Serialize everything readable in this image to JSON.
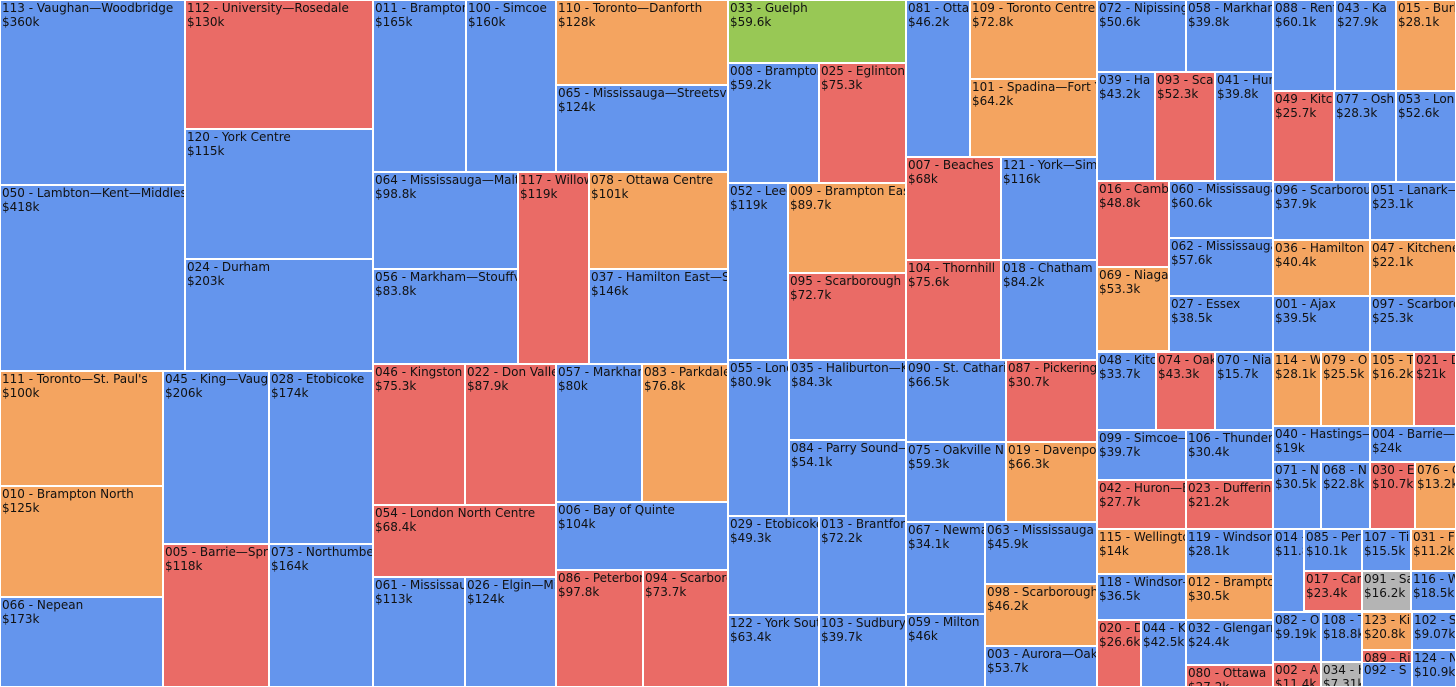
{
  "colors": {
    "Liberal": "#6495ed",
    "Conservative": "#ea6b66",
    "NDP": "#f4a460",
    "Green": "#98c855",
    "Other": "#b4b4b4"
  },
  "chart_data": {
    "type": "treemap",
    "title": "",
    "value_unit": "$",
    "items": [
      {
        "label": "113 - Vaughan—Woodbridge",
        "value_label": "$360k",
        "value": 360000,
        "party": "Liberal"
      },
      {
        "label": "050 - Lambton—Kent—Middlesex",
        "value_label": "$418k",
        "value": 418000,
        "party": "Liberal"
      },
      {
        "label": "112 - University—Rosedale",
        "value_label": "$130k",
        "value": 130000,
        "party": "Conservative"
      },
      {
        "label": "120 - York Centre",
        "value_label": "$115k",
        "value": 115000,
        "party": "Liberal"
      },
      {
        "label": "024 - Durham",
        "value_label": "$203k",
        "value": 203000,
        "party": "Liberal"
      },
      {
        "label": "111 - Toronto—St. Paul's",
        "value_label": "$100k",
        "value": 100000,
        "party": "NDP"
      },
      {
        "label": "010 - Brampton North",
        "value_label": "$125k",
        "value": 125000,
        "party": "NDP"
      },
      {
        "label": "066 - Nepean",
        "value_label": "$173k",
        "value": 173000,
        "party": "Liberal"
      },
      {
        "label": "045 - King—Vaughan",
        "value_label": "$206k",
        "value": 206000,
        "party": "Liberal"
      },
      {
        "label": "005 - Barrie—Springwater",
        "value_label": "$118k",
        "value": 118000,
        "party": "Conservative"
      },
      {
        "label": "028 - Etobicoke",
        "value_label": "$174k",
        "value": 174000,
        "party": "Liberal"
      },
      {
        "label": "073 - Northumberland",
        "value_label": "$164k",
        "value": 164000,
        "party": "Liberal"
      },
      {
        "label": "011 - Brampton",
        "value_label": "$165k",
        "value": 165000,
        "party": "Liberal"
      },
      {
        "label": "100 - Simcoe",
        "value_label": "$160k",
        "value": 160000,
        "party": "Liberal"
      },
      {
        "label": "064 - Mississauga—Malton",
        "value_label": "$98.8k",
        "value": 98800,
        "party": "Liberal"
      },
      {
        "label": "056 - Markham—Stouffville",
        "value_label": "$83.8k",
        "value": 83800,
        "party": "Liberal"
      },
      {
        "label": "117 - Willowdale",
        "value_label": "$119k",
        "value": 119000,
        "party": "Conservative"
      },
      {
        "label": "110 - Toronto—Danforth",
        "value_label": "$128k",
        "value": 128000,
        "party": "NDP"
      },
      {
        "label": "065 - Mississauga—Streetsville",
        "value_label": "$124k",
        "value": 124000,
        "party": "Liberal"
      },
      {
        "label": "078 - Ottawa Centre",
        "value_label": "$101k",
        "value": 101000,
        "party": "NDP"
      },
      {
        "label": "037 - Hamilton East—Stoney Creek",
        "value_label": "$146k",
        "value": 146000,
        "party": "Liberal"
      },
      {
        "label": "046 - Kingston",
        "value_label": "$75.3k",
        "value": 75300,
        "party": "Conservative"
      },
      {
        "label": "022 - Don Valley",
        "value_label": "$87.9k",
        "value": 87900,
        "party": "Conservative"
      },
      {
        "label": "054 - London North Centre",
        "value_label": "$68.4k",
        "value": 68400,
        "party": "Conservative"
      },
      {
        "label": "061 - Mississauga",
        "value_label": "$113k",
        "value": 113000,
        "party": "Liberal"
      },
      {
        "label": "026 - Elgin—Middlesex",
        "value_label": "$124k",
        "value": 124000,
        "party": "Liberal"
      },
      {
        "label": "057 - Markham",
        "value_label": "$80k",
        "value": 80000,
        "party": "Liberal"
      },
      {
        "label": "083 - Parkdale",
        "value_label": "$76.8k",
        "value": 76800,
        "party": "NDP"
      },
      {
        "label": "006 - Bay of Quinte",
        "value_label": "$104k",
        "value": 104000,
        "party": "Liberal"
      },
      {
        "label": "086 - Peterborough",
        "value_label": "$97.8k",
        "value": 97800,
        "party": "Conservative"
      },
      {
        "label": "094 - Scarborough",
        "value_label": "$73.7k",
        "value": 73700,
        "party": "Conservative"
      },
      {
        "label": "033 - Guelph",
        "value_label": "$59.6k",
        "value": 59600,
        "party": "Green"
      },
      {
        "label": "008 - Brampton",
        "value_label": "$59.2k",
        "value": 59200,
        "party": "Liberal"
      },
      {
        "label": "025 - Eglinton",
        "value_label": "$75.3k",
        "value": 75300,
        "party": "Conservative"
      },
      {
        "label": "052 - Leeds",
        "value_label": "$119k",
        "value": 119000,
        "party": "Liberal"
      },
      {
        "label": "009 - Brampton East",
        "value_label": "$89.7k",
        "value": 89700,
        "party": "NDP"
      },
      {
        "label": "095 - Scarborough",
        "value_label": "$72.7k",
        "value": 72700,
        "party": "Conservative"
      },
      {
        "label": "055 - London",
        "value_label": "$80.9k",
        "value": 80900,
        "party": "Liberal"
      },
      {
        "label": "035 - Haliburton—Kawartha",
        "value_label": "$84.3k",
        "value": 84300,
        "party": "Liberal"
      },
      {
        "label": "084 - Parry Sound—Muskoka",
        "value_label": "$54.1k",
        "value": 54100,
        "party": "Liberal"
      },
      {
        "label": "029 - Etobicoke",
        "value_label": "$49.3k",
        "value": 49300,
        "party": "Liberal"
      },
      {
        "label": "013 - Brantford",
        "value_label": "$72.2k",
        "value": 72200,
        "party": "Liberal"
      },
      {
        "label": "122 - York South",
        "value_label": "$63.4k",
        "value": 63400,
        "party": "Liberal"
      },
      {
        "label": "103 - Sudbury",
        "value_label": "$39.7k",
        "value": 39700,
        "party": "Liberal"
      },
      {
        "label": "081 - Ottawa",
        "value_label": "$46.2k",
        "value": 46200,
        "party": "Liberal"
      },
      {
        "label": "109 - Toronto Centre",
        "value_label": "$72.8k",
        "value": 72800,
        "party": "NDP"
      },
      {
        "label": "101 - Spadina—Fort York",
        "value_label": "$64.2k",
        "value": 64200,
        "party": "NDP"
      },
      {
        "label": "007 - Beaches",
        "value_label": "$68k",
        "value": 68000,
        "party": "Conservative"
      },
      {
        "label": "121 - York—Simcoe",
        "value_label": "$116k",
        "value": 116000,
        "party": "Liberal"
      },
      {
        "label": "104 - Thornhill",
        "value_label": "$75.6k",
        "value": 75600,
        "party": "Conservative"
      },
      {
        "label": "018 - Chatham",
        "value_label": "$84.2k",
        "value": 84200,
        "party": "Liberal"
      },
      {
        "label": "090 - St. Catharines",
        "value_label": "$66.5k",
        "value": 66500,
        "party": "Liberal"
      },
      {
        "label": "087 - Pickering",
        "value_label": "$30.7k",
        "value": 30700,
        "party": "Conservative"
      },
      {
        "label": "075 - Oakville N",
        "value_label": "$59.3k",
        "value": 59300,
        "party": "Liberal"
      },
      {
        "label": "019 - Davenport",
        "value_label": "$66.3k",
        "value": 66300,
        "party": "NDP"
      },
      {
        "label": "067 - Newmarket",
        "value_label": "$34.1k",
        "value": 34100,
        "party": "Liberal"
      },
      {
        "label": "063 - Mississauga",
        "value_label": "$45.9k",
        "value": 45900,
        "party": "Liberal"
      },
      {
        "label": "098 - Scarborough",
        "value_label": "$46.2k",
        "value": 46200,
        "party": "NDP"
      },
      {
        "label": "059 - Milton",
        "value_label": "$46k",
        "value": 46000,
        "party": "Liberal"
      },
      {
        "label": "003 - Aurora—Oak Ridges",
        "value_label": "$53.7k",
        "value": 53700,
        "party": "Liberal"
      },
      {
        "label": "072 - Nipissing",
        "value_label": "$50.6k",
        "value": 50600,
        "party": "Liberal"
      },
      {
        "label": "058 - Markham",
        "value_label": "$39.8k",
        "value": 39800,
        "party": "Liberal"
      },
      {
        "label": "039 - Ha",
        "value_label": "$43.2k",
        "value": 43200,
        "party": "Liberal"
      },
      {
        "label": "093 - Sca",
        "value_label": "$52.3k",
        "value": 52300,
        "party": "Conservative"
      },
      {
        "label": "041 - Hur",
        "value_label": "$39.8k",
        "value": 39800,
        "party": "Liberal"
      },
      {
        "label": "016 - Cambridge",
        "value_label": "$48.8k",
        "value": 48800,
        "party": "Conservative"
      },
      {
        "label": "060 - Mississauga",
        "value_label": "$60.6k",
        "value": 60600,
        "party": "Liberal"
      },
      {
        "label": "062 - Mississauga",
        "value_label": "$57.6k",
        "value": 57600,
        "party": "Liberal"
      },
      {
        "label": "069 - Niagara",
        "value_label": "$53.3k",
        "value": 53300,
        "party": "NDP"
      },
      {
        "label": "027 - Essex",
        "value_label": "$38.5k",
        "value": 38500,
        "party": "Liberal"
      },
      {
        "label": "048 - Kitchener",
        "value_label": "$33.7k",
        "value": 33700,
        "party": "Liberal"
      },
      {
        "label": "074 - Oakville",
        "value_label": "$43.3k",
        "value": 43300,
        "party": "Conservative"
      },
      {
        "label": "070 - Niagara",
        "value_label": "$15.7k",
        "value": 15700,
        "party": "Liberal"
      },
      {
        "label": "099 - Simcoe—Grey",
        "value_label": "$39.7k",
        "value": 39700,
        "party": "Liberal"
      },
      {
        "label": "106 - Thunder Bay",
        "value_label": "$30.4k",
        "value": 30400,
        "party": "Liberal"
      },
      {
        "label": "042 - Huron—Bruce",
        "value_label": "$27.7k",
        "value": 27700,
        "party": "Conservative"
      },
      {
        "label": "023 - Dufferin",
        "value_label": "$21.2k",
        "value": 21200,
        "party": "Conservative"
      },
      {
        "label": "115 - Wellington",
        "value_label": "$14k",
        "value": 14000,
        "party": "NDP"
      },
      {
        "label": "119 - Windsor",
        "value_label": "$28.1k",
        "value": 28100,
        "party": "Liberal"
      },
      {
        "label": "118 - Windsor—Tecumseh",
        "value_label": "$36.5k",
        "value": 36500,
        "party": "Liberal"
      },
      {
        "label": "012 - Brampton",
        "value_label": "$30.5k",
        "value": 30500,
        "party": "NDP"
      },
      {
        "label": "020 - D",
        "value_label": "$26.6k",
        "value": 26600,
        "party": "Conservative"
      },
      {
        "label": "044 - K",
        "value_label": "$42.5k",
        "value": 42500,
        "party": "Liberal"
      },
      {
        "label": "032 - Glengarry",
        "value_label": "$24.4k",
        "value": 24400,
        "party": "Liberal"
      },
      {
        "label": "080 - Ottawa",
        "value_label": "$27.2k",
        "value": 27200,
        "party": "Conservative"
      },
      {
        "label": "088 - Renfrew",
        "value_label": "$60.1k",
        "value": 60100,
        "party": "Liberal"
      },
      {
        "label": "043 - Ka",
        "value_label": "$27.9k",
        "value": 27900,
        "party": "Liberal"
      },
      {
        "label": "015 - Burlington",
        "value_label": "$28.1k",
        "value": 28100,
        "party": "NDP"
      },
      {
        "label": "049 - Kitchener",
        "value_label": "$25.7k",
        "value": 25700,
        "party": "Conservative"
      },
      {
        "label": "077 - Oshawa",
        "value_label": "$28.3k",
        "value": 28300,
        "party": "Liberal"
      },
      {
        "label": "053 - London",
        "value_label": "$52.6k",
        "value": 52600,
        "party": "Liberal"
      },
      {
        "label": "096 - Scarborough",
        "value_label": "$37.9k",
        "value": 37900,
        "party": "Liberal"
      },
      {
        "label": "051 - Lanark—Frontenac",
        "value_label": "$23.1k",
        "value": 23100,
        "party": "Liberal"
      },
      {
        "label": "036 - Hamilton",
        "value_label": "$40.4k",
        "value": 40400,
        "party": "NDP"
      },
      {
        "label": "047 - Kitchener",
        "value_label": "$22.1k",
        "value": 22100,
        "party": "NDP"
      },
      {
        "label": "001 - Ajax",
        "value_label": "$39.5k",
        "value": 39500,
        "party": "Liberal"
      },
      {
        "label": "097 - Scarborough",
        "value_label": "$25.3k",
        "value": 25300,
        "party": "Liberal"
      },
      {
        "label": "114 - Wa",
        "value_label": "$28.1k",
        "value": 28100,
        "party": "NDP"
      },
      {
        "label": "079 - O",
        "value_label": "$25.5k",
        "value": 25500,
        "party": "NDP"
      },
      {
        "label": "105 - T",
        "value_label": "$16.2k",
        "value": 16200,
        "party": "NDP"
      },
      {
        "label": "021 - D",
        "value_label": "$21k",
        "value": 21000,
        "party": "Conservative"
      },
      {
        "label": "040 - Hastings—Lennox",
        "value_label": "$19k",
        "value": 19000,
        "party": "Liberal"
      },
      {
        "label": "004 - Barrie—Innisfil",
        "value_label": "$24k",
        "value": 24000,
        "party": "Liberal"
      },
      {
        "label": "071 - Ni",
        "value_label": "$30.5k",
        "value": 30500,
        "party": "Liberal"
      },
      {
        "label": "068 - N",
        "value_label": "$22.8k",
        "value": 22800,
        "party": "Liberal"
      },
      {
        "label": "030 - E",
        "value_label": "$10.7k",
        "value": 10700,
        "party": "Conservative"
      },
      {
        "label": "076 - O",
        "value_label": "$13.2k",
        "value": 13200,
        "party": "NDP"
      },
      {
        "label": "014 - B",
        "value_label": "$11.8k",
        "value": 11800,
        "party": "Liberal"
      },
      {
        "label": "085 - Perth",
        "value_label": "$10.1k",
        "value": 10100,
        "party": "Liberal"
      },
      {
        "label": "107 - Ti",
        "value_label": "$15.5k",
        "value": 15500,
        "party": "Liberal"
      },
      {
        "label": "031 - F",
        "value_label": "$11.2k",
        "value": 11200,
        "party": "NDP"
      },
      {
        "label": "017 - Carleton",
        "value_label": "$23.4k",
        "value": 23400,
        "party": "Conservative"
      },
      {
        "label": "091 - Sa",
        "value_label": "$16.2k",
        "value": 16200,
        "party": "Other"
      },
      {
        "label": "116 - W",
        "value_label": "$18.5k",
        "value": 18500,
        "party": "Liberal"
      },
      {
        "label": "082 - O",
        "value_label": "$9.19k",
        "value": 9190,
        "party": "Liberal"
      },
      {
        "label": "108 - T",
        "value_label": "$18.8k",
        "value": 18800,
        "party": "Liberal"
      },
      {
        "label": "123 - Kiin",
        "value_label": "$20.8k",
        "value": 20800,
        "party": "NDP"
      },
      {
        "label": "102 - S",
        "value_label": "$9.07k",
        "value": 9070,
        "party": "Liberal"
      },
      {
        "label": "089 - Ri",
        "value_label": "$15.4k",
        "value": 15400,
        "party": "Conservative"
      },
      {
        "label": "124 - N",
        "value_label": "$10.9k",
        "value": 10900,
        "party": "Liberal"
      },
      {
        "label": "002 - A",
        "value_label": "$11.4k",
        "value": 11400,
        "party": "Conservative"
      },
      {
        "label": "034 - H",
        "value_label": "$7.31k",
        "value": 7310,
        "party": "Other"
      },
      {
        "label": "092 - S",
        "value_label": "",
        "value": 8000,
        "party": "Liberal"
      }
    ]
  }
}
